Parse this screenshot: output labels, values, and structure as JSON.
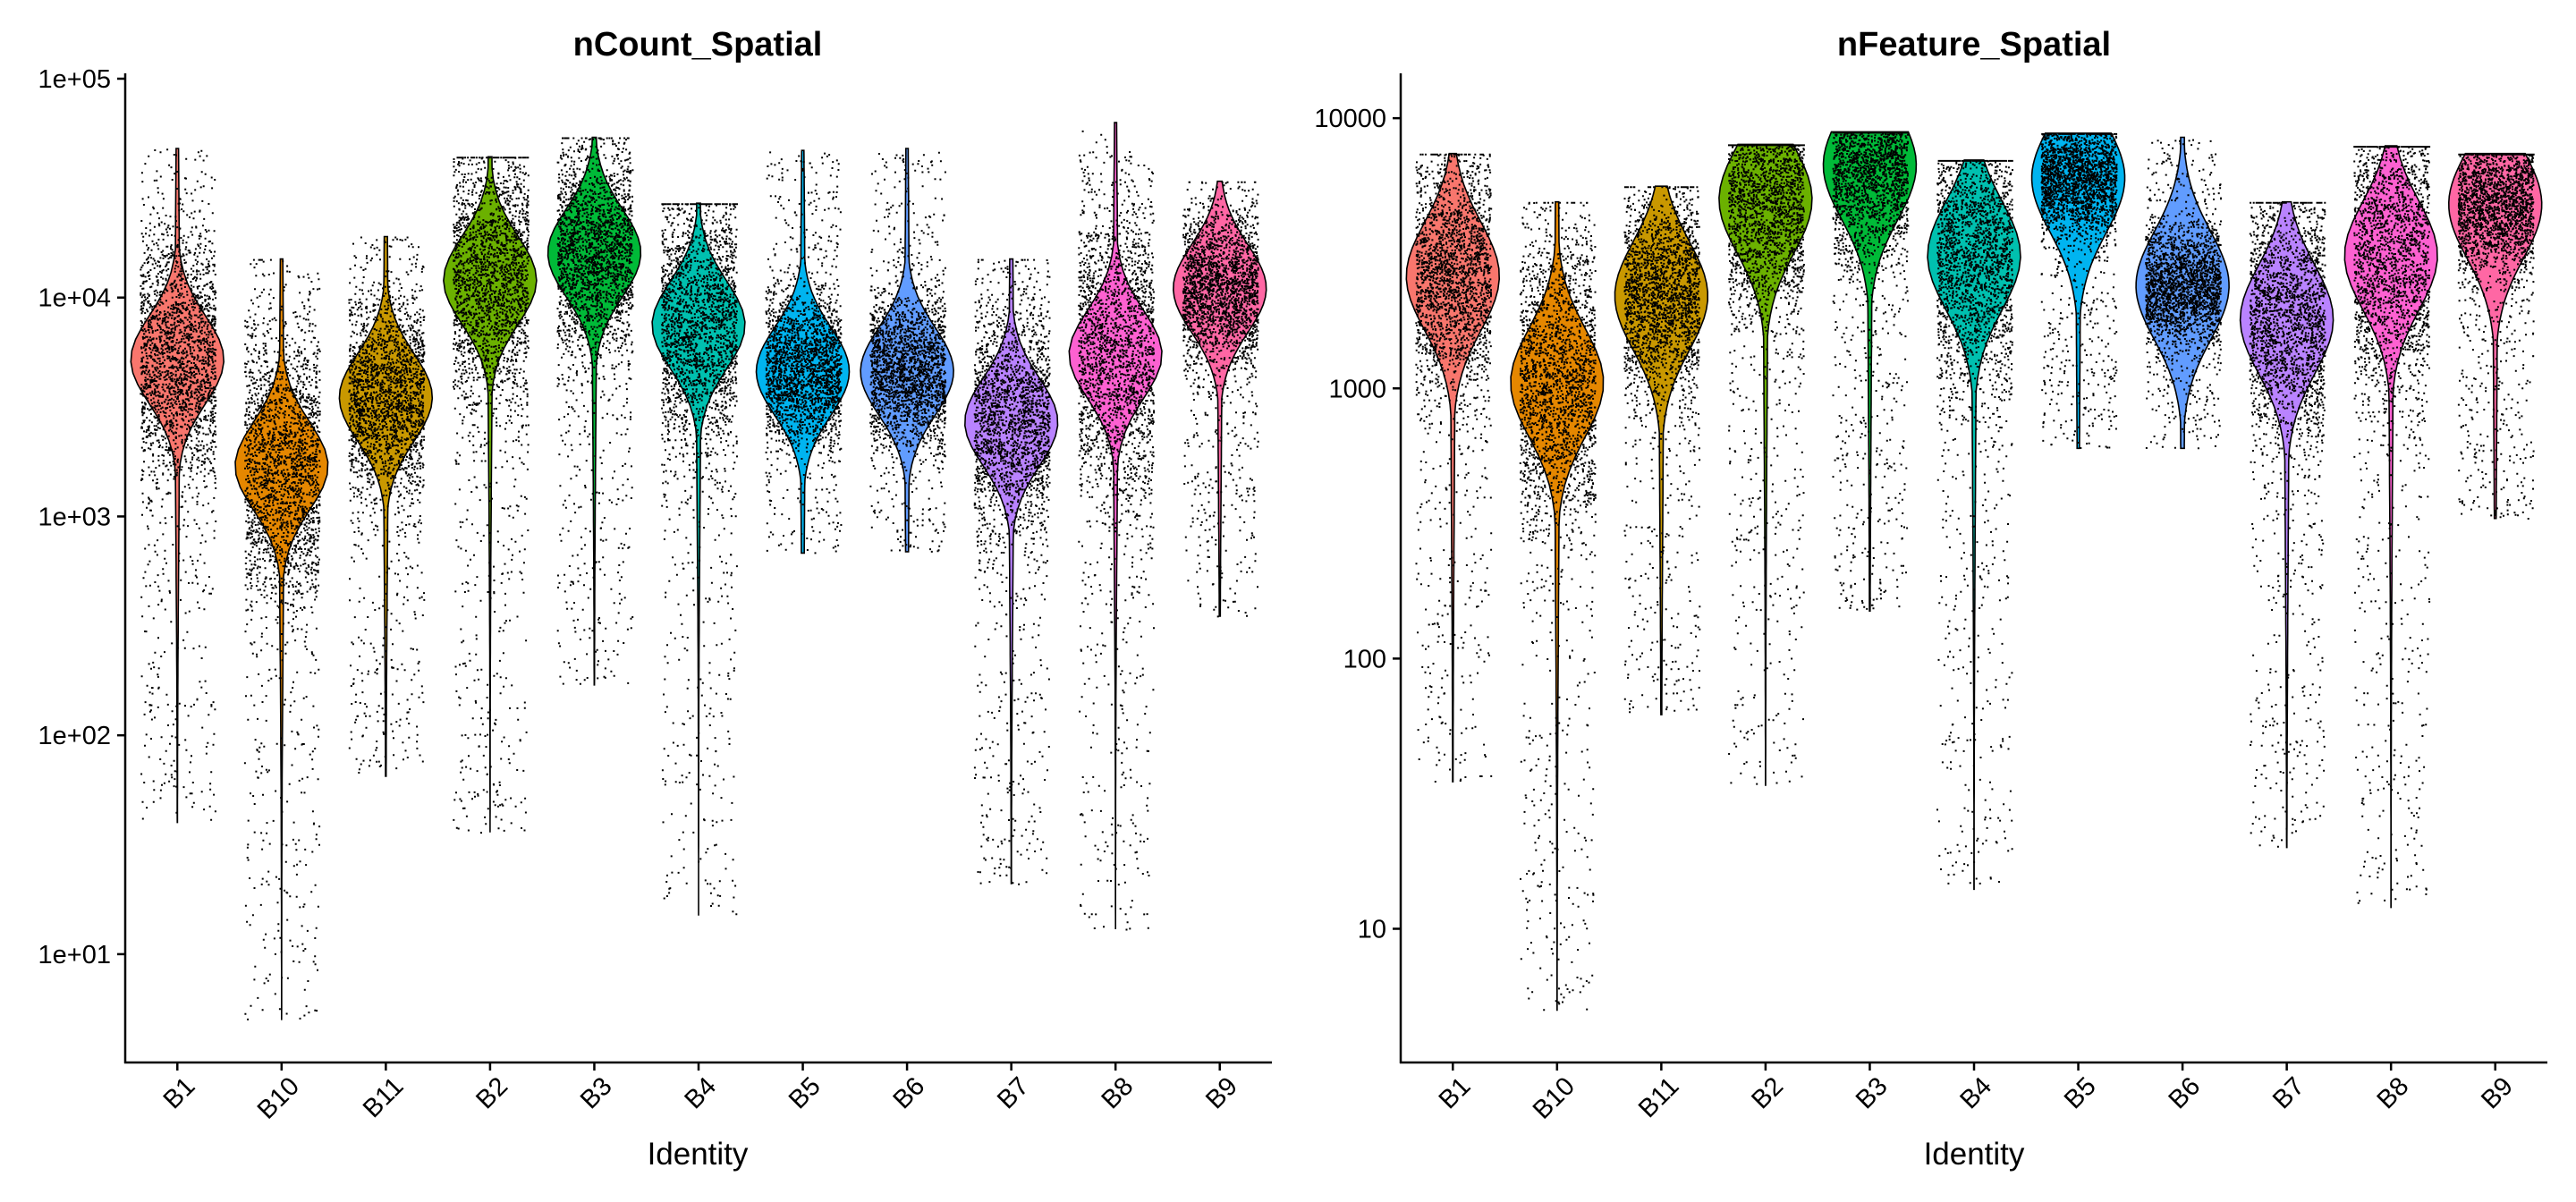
{
  "chart_data": [
    {
      "type": "violin",
      "title": "nCount_Spatial",
      "xlabel": "Identity",
      "ylabel": "",
      "y_scale": "log10",
      "ylim": [
        3.2,
        100000
      ],
      "y_ticks": [
        10,
        100,
        1000,
        10000,
        100000
      ],
      "y_tick_labels": [
        "1e+01",
        "1e+02",
        "1e+03",
        "1e+04",
        "1e+05"
      ],
      "grid": false,
      "legend": "none",
      "categories": [
        "B1",
        "B10",
        "B11",
        "B2",
        "B3",
        "B4",
        "B5",
        "B6",
        "B7",
        "B8",
        "B9"
      ],
      "colors": [
        "#F8766D",
        "#E58700",
        "#C99800",
        "#6BB100",
        "#00BA38",
        "#00C0AF",
        "#00B4F0",
        "#619CFF",
        "#B983FF",
        "#FD61D1",
        "#FF67A4"
      ],
      "violins": [
        {
          "group": "B1",
          "min": 40,
          "max": 48000,
          "mode": 5200,
          "n": 2400
        },
        {
          "group": "B10",
          "min": 5,
          "max": 15000,
          "mode": 1700,
          "n": 2400
        },
        {
          "group": "B11",
          "min": 65,
          "max": 19000,
          "mode": 3500,
          "n": 2400
        },
        {
          "group": "B2",
          "min": 36,
          "max": 44000,
          "mode": 12000,
          "n": 2400
        },
        {
          "group": "B3",
          "min": 170,
          "max": 54000,
          "mode": 16000,
          "n": 2400
        },
        {
          "group": "B4",
          "min": 15,
          "max": 27000,
          "mode": 7500,
          "n": 2400
        },
        {
          "group": "B5",
          "min": 680,
          "max": 47000,
          "mode": 4600,
          "n": 2400
        },
        {
          "group": "B6",
          "min": 690,
          "max": 48000,
          "mode": 4600,
          "n": 2400
        },
        {
          "group": "B7",
          "min": 21,
          "max": 15000,
          "mode": 2700,
          "n": 2400
        },
        {
          "group": "B8",
          "min": 13,
          "max": 63000,
          "mode": 5500,
          "n": 2400
        },
        {
          "group": "B9",
          "min": 350,
          "max": 34000,
          "mode": 11000,
          "n": 2400
        }
      ]
    },
    {
      "type": "violin",
      "title": "nFeature_Spatial",
      "xlabel": "Identity",
      "ylabel": "",
      "y_scale": "log10",
      "ylim": [
        3.2,
        14000
      ],
      "y_ticks": [
        10,
        100,
        1000,
        10000
      ],
      "y_tick_labels": [
        "10",
        "100",
        "1000",
        "10000"
      ],
      "grid": false,
      "legend": "none",
      "categories": [
        "B1",
        "B10",
        "B11",
        "B2",
        "B3",
        "B4",
        "B5",
        "B6",
        "B7",
        "B8",
        "B9"
      ],
      "colors": [
        "#F8766D",
        "#E58700",
        "#C99800",
        "#6BB100",
        "#00BA38",
        "#00C0AF",
        "#00B4F0",
        "#619CFF",
        "#B983FF",
        "#FD61D1",
        "#FF67A4"
      ],
      "violins": [
        {
          "group": "B1",
          "min": 35,
          "max": 7400,
          "mode": 2600,
          "n": 2400
        },
        {
          "group": "B10",
          "min": 5,
          "max": 4900,
          "mode": 1050,
          "n": 2400
        },
        {
          "group": "B11",
          "min": 62,
          "max": 5600,
          "mode": 2200,
          "n": 2400
        },
        {
          "group": "B2",
          "min": 34,
          "max": 8000,
          "mode": 5000,
          "n": 2400
        },
        {
          "group": "B3",
          "min": 150,
          "max": 8900,
          "mode": 6700,
          "n": 2400
        },
        {
          "group": "B4",
          "min": 14,
          "max": 7000,
          "mode": 3100,
          "n": 2400
        },
        {
          "group": "B5",
          "min": 600,
          "max": 8800,
          "mode": 6000,
          "n": 2400
        },
        {
          "group": "B6",
          "min": 600,
          "max": 8500,
          "mode": 2400,
          "n": 2400
        },
        {
          "group": "B7",
          "min": 20,
          "max": 4900,
          "mode": 1800,
          "n": 2400
        },
        {
          "group": "B8",
          "min": 12,
          "max": 7900,
          "mode": 3100,
          "n": 2400
        },
        {
          "group": "B9",
          "min": 330,
          "max": 7400,
          "mode": 4800,
          "n": 2400
        }
      ]
    }
  ]
}
